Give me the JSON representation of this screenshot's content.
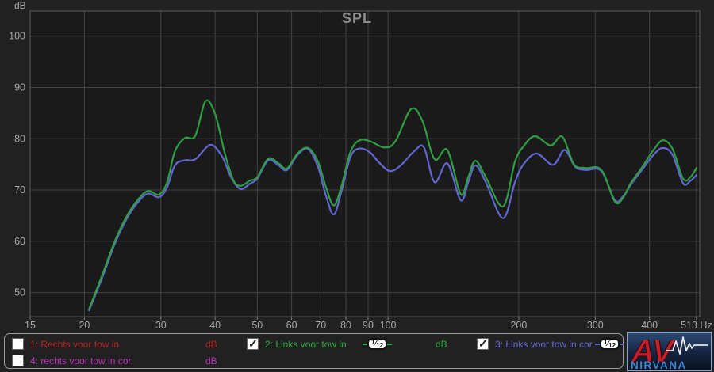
{
  "chart": {
    "title": "SPL",
    "y_unit_label": "dB"
  },
  "chart_data": {
    "type": "line",
    "x_scale": "log",
    "xlabel": "Hz",
    "ylabel": "dB",
    "xlim": [
      15,
      522
    ],
    "ylim": [
      45.3,
      104.9
    ],
    "grid": true,
    "x_gridlines": [
      20,
      30,
      40,
      50,
      60,
      70,
      80,
      90,
      100,
      200,
      300,
      400,
      513
    ],
    "y_gridlines": [
      100,
      90,
      80,
      70,
      60,
      50
    ],
    "x_tick_labels": [
      {
        "f": 15,
        "t": "15"
      },
      {
        "f": 20,
        "t": "20"
      },
      {
        "f": 30,
        "t": "30"
      },
      {
        "f": 40,
        "t": "40"
      },
      {
        "f": 50,
        "t": "50"
      },
      {
        "f": 60,
        "t": "60"
      },
      {
        "f": 70,
        "t": "70"
      },
      {
        "f": 80,
        "t": "80"
      },
      {
        "f": 90,
        "t": "90"
      },
      {
        "f": 100,
        "t": "100"
      },
      {
        "f": 200,
        "t": "200"
      },
      {
        "f": 300,
        "t": "300"
      },
      {
        "f": 400,
        "t": "400"
      },
      {
        "f": 513,
        "t": "513 Hz"
      }
    ],
    "y_tick_labels": [
      "100",
      "90",
      "80",
      "70",
      "60",
      "50"
    ],
    "series": [
      {
        "name": "2: Links voor tow in",
        "color": "#2f9e42",
        "points": [
          [
            20.5,
            46.8
          ],
          [
            22,
            53.5
          ],
          [
            23.5,
            60
          ],
          [
            25,
            64.8
          ],
          [
            26.5,
            68
          ],
          [
            28,
            69.8
          ],
          [
            29.7,
            69.1
          ],
          [
            31,
            71.5
          ],
          [
            32.3,
            77.5
          ],
          [
            34,
            80.1
          ],
          [
            36,
            80.6
          ],
          [
            38,
            87.3
          ],
          [
            40,
            84.8
          ],
          [
            42,
            77.5
          ],
          [
            44,
            72
          ],
          [
            45.7,
            70.8
          ],
          [
            48,
            71.8
          ],
          [
            50,
            72.5
          ],
          [
            53,
            76.1
          ],
          [
            56,
            75.2
          ],
          [
            58.5,
            74.2
          ],
          [
            62,
            77.2
          ],
          [
            65.5,
            78.2
          ],
          [
            69,
            75.5
          ],
          [
            72,
            70.5
          ],
          [
            75,
            67
          ],
          [
            78,
            70.5
          ],
          [
            82,
            77.5
          ],
          [
            86,
            79.7
          ],
          [
            91,
            79.5
          ],
          [
            98,
            78.3
          ],
          [
            104,
            79.5
          ],
          [
            113,
            85.8
          ],
          [
            120,
            83.5
          ],
          [
            128,
            76
          ],
          [
            137,
            77.8
          ],
          [
            147,
            69.2
          ],
          [
            153,
            72.5
          ],
          [
            159,
            75.7
          ],
          [
            168,
            72.5
          ],
          [
            184,
            66.8
          ],
          [
            196,
            75.5
          ],
          [
            205,
            78.5
          ],
          [
            218,
            80.5
          ],
          [
            237,
            78.7
          ],
          [
            252,
            80.4
          ],
          [
            268,
            75
          ],
          [
            285,
            74.3
          ],
          [
            310,
            73.9
          ],
          [
            333,
            67.7
          ],
          [
            348,
            68.5
          ],
          [
            362,
            71.3
          ],
          [
            385,
            74.5
          ],
          [
            410,
            78
          ],
          [
            430,
            79.7
          ],
          [
            452,
            78
          ],
          [
            478,
            72.2
          ],
          [
            497,
            72.5
          ],
          [
            513,
            74.3
          ]
        ]
      },
      {
        "name": "3: Links voor tow in cor.",
        "color": "#6166d0",
        "points": [
          [
            20.5,
            46.5
          ],
          [
            22,
            53
          ],
          [
            23.5,
            59.5
          ],
          [
            25,
            64.3
          ],
          [
            26.5,
            67.5
          ],
          [
            28,
            69.3
          ],
          [
            29.7,
            68.6
          ],
          [
            31,
            70.5
          ],
          [
            32.3,
            74.8
          ],
          [
            34,
            75.8
          ],
          [
            36,
            76
          ],
          [
            39,
            78.8
          ],
          [
            41.5,
            76.5
          ],
          [
            43.5,
            72.5
          ],
          [
            45.7,
            70.2
          ],
          [
            48,
            71.2
          ],
          [
            50,
            72.2
          ],
          [
            53,
            75.8
          ],
          [
            56,
            74.8
          ],
          [
            58.5,
            73.9
          ],
          [
            62,
            76.9
          ],
          [
            65.5,
            78
          ],
          [
            69,
            74.5
          ],
          [
            72,
            68.8
          ],
          [
            75,
            65.2
          ],
          [
            78,
            69.5
          ],
          [
            82,
            76.5
          ],
          [
            86,
            78.1
          ],
          [
            91,
            77.3
          ],
          [
            95,
            75.5
          ],
          [
            101,
            73.7
          ],
          [
            107,
            74.8
          ],
          [
            115,
            77.6
          ],
          [
            121,
            78.3
          ],
          [
            128,
            71.5
          ],
          [
            137,
            75.2
          ],
          [
            147,
            68
          ],
          [
            153,
            71.5
          ],
          [
            159,
            74.8
          ],
          [
            168,
            71.5
          ],
          [
            184,
            64.5
          ],
          [
            196,
            71.5
          ],
          [
            205,
            75
          ],
          [
            220,
            77.1
          ],
          [
            240,
            74.9
          ],
          [
            255,
            77.8
          ],
          [
            270,
            74.5
          ],
          [
            285,
            73.9
          ],
          [
            310,
            73.7
          ],
          [
            333,
            68
          ],
          [
            348,
            68.8
          ],
          [
            362,
            71
          ],
          [
            385,
            74
          ],
          [
            410,
            77
          ],
          [
            430,
            78.2
          ],
          [
            452,
            76.8
          ],
          [
            478,
            71.3
          ],
          [
            497,
            71.8
          ],
          [
            513,
            72.9
          ]
        ]
      }
    ],
    "colors": {
      "plot_bg": "#1a1a1a",
      "grid": "#444444",
      "border": "#5a5a5a",
      "tick_text": "#a8a8a8",
      "title": "#8d8d8d"
    }
  },
  "legend": {
    "items": [
      {
        "label": "1: Rechts voor tow in",
        "unit": "dB",
        "color": "#bb2222",
        "checked": false,
        "smoothing": null
      },
      {
        "label": "2: Links voor tow in",
        "unit": "dB",
        "color": "#2fa845",
        "checked": true,
        "smoothing": "1/12"
      },
      {
        "label": "3: Links voor tow in cor.",
        "unit": "",
        "color": "#6468d8",
        "checked": true,
        "smoothing": "1/12"
      },
      {
        "label": "4: rechts voor tow in cor.",
        "unit": "dB",
        "color": "#bb33bb",
        "checked": false,
        "smoothing": null
      }
    ]
  },
  "logo": {
    "line1": "AV",
    "line2": "NIRVANA"
  }
}
